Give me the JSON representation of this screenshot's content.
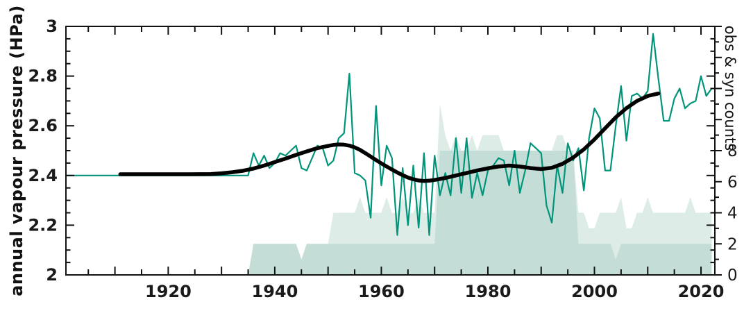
{
  "figure": {
    "background": "#ffffff",
    "axis_color": "#111111",
    "accent_teal": "#00947a",
    "smooth_black": "#000000",
    "area_fill": "rgba(106,168,152,0.22)"
  },
  "chart_data": {
    "type": "line",
    "title": "",
    "xlabel": "",
    "ylabel": "annual vapour pressure (HPa)",
    "y2label": "obs & syn counts",
    "grid": false,
    "legend": "none",
    "xlim": [
      1900.8,
      2022.6
    ],
    "ylim_left": [
      2,
      3
    ],
    "ylim_right": [
      0,
      16
    ],
    "x_labeled_ticks": [
      1920,
      1940,
      1960,
      1980,
      2000,
      2020
    ],
    "x_tick_labels": [
      "1920",
      "1940",
      "1960",
      "1980",
      "2000",
      "2020"
    ],
    "x_major_step": 10,
    "x_minor_step": 5,
    "y_left_tick_values": [
      2,
      2.2,
      2.4,
      2.6,
      2.8,
      3
    ],
    "y_left_tick_labels": [
      "2",
      "2.2",
      "2.4",
      "2.6",
      "2.8",
      "3"
    ],
    "y_left_minor_step": 0.05,
    "y_right_tick_values": [
      0,
      2,
      4,
      6,
      8
    ],
    "y_right_tick_labels": [
      "0",
      "2",
      "4",
      "6",
      "8"
    ],
    "y_right_minor_step": 1,
    "series": [
      {
        "name": "annual vapour pressure",
        "kind": "line",
        "axis": "left",
        "color": "#00947a",
        "width": 2.2,
        "x_start": 1901,
        "values": [
          2.4,
          2.4,
          2.4,
          2.4,
          2.4,
          2.4,
          2.4,
          2.4,
          2.4,
          2.4,
          2.4,
          2.4,
          2.4,
          2.4,
          2.4,
          2.4,
          2.4,
          2.4,
          2.4,
          2.4,
          2.4,
          2.4,
          2.4,
          2.4,
          2.4,
          2.4,
          2.4,
          2.4,
          2.4,
          2.4,
          2.4,
          2.4,
          2.4,
          2.4,
          2.4,
          2.49,
          2.44,
          2.48,
          2.43,
          2.45,
          2.49,
          2.48,
          2.5,
          2.52,
          2.43,
          2.42,
          2.47,
          2.52,
          2.51,
          2.44,
          2.46,
          2.55,
          2.57,
          2.81,
          2.41,
          2.4,
          2.38,
          2.23,
          2.68,
          2.36,
          2.52,
          2.47,
          2.16,
          2.43,
          2.2,
          2.44,
          2.19,
          2.49,
          2.16,
          2.48,
          2.32,
          2.41,
          2.32,
          2.55,
          2.33,
          2.55,
          2.31,
          2.41,
          2.32,
          2.42,
          2.44,
          2.47,
          2.46,
          2.36,
          2.5,
          2.33,
          2.42,
          2.53,
          2.51,
          2.49,
          2.28,
          2.21,
          2.44,
          2.33,
          2.53,
          2.46,
          2.51,
          2.34,
          2.55,
          2.67,
          2.63,
          2.42,
          2.42,
          2.6,
          2.76,
          2.54,
          2.72,
          2.73,
          2.71,
          2.74,
          2.97,
          2.79,
          2.62,
          2.62,
          2.71,
          2.75,
          2.67,
          2.69,
          2.7,
          2.8,
          2.72,
          2.75
        ]
      },
      {
        "name": "smoothed annual vapour pressure",
        "kind": "line",
        "axis": "left",
        "color": "#000000",
        "width": 5.5,
        "points": [
          [
            1911,
            2.405
          ],
          [
            1916,
            2.405
          ],
          [
            1920,
            2.405
          ],
          [
            1924,
            2.405
          ],
          [
            1928,
            2.406
          ],
          [
            1930,
            2.409
          ],
          [
            1932,
            2.413
          ],
          [
            1934,
            2.419
          ],
          [
            1936,
            2.428
          ],
          [
            1938,
            2.44
          ],
          [
            1940,
            2.454
          ],
          [
            1942,
            2.468
          ],
          [
            1944,
            2.483
          ],
          [
            1946,
            2.497
          ],
          [
            1948,
            2.51
          ],
          [
            1950,
            2.519
          ],
          [
            1951,
            2.523
          ],
          [
            1952,
            2.525
          ],
          [
            1953,
            2.524
          ],
          [
            1954,
            2.52
          ],
          [
            1955,
            2.513
          ],
          [
            1956,
            2.503
          ],
          [
            1957,
            2.49
          ],
          [
            1958,
            2.476
          ],
          [
            1959,
            2.462
          ],
          [
            1960,
            2.449
          ],
          [
            1961,
            2.436
          ],
          [
            1962,
            2.424
          ],
          [
            1963,
            2.412
          ],
          [
            1964,
            2.401
          ],
          [
            1965,
            2.392
          ],
          [
            1966,
            2.385
          ],
          [
            1967,
            2.38
          ],
          [
            1968,
            2.378
          ],
          [
            1969,
            2.379
          ],
          [
            1970,
            2.382
          ],
          [
            1972,
            2.39
          ],
          [
            1974,
            2.4
          ],
          [
            1976,
            2.41
          ],
          [
            1978,
            2.42
          ],
          [
            1980,
            2.429
          ],
          [
            1982,
            2.436
          ],
          [
            1984,
            2.44
          ],
          [
            1986,
            2.436
          ],
          [
            1988,
            2.43
          ],
          [
            1990,
            2.426
          ],
          [
            1992,
            2.431
          ],
          [
            1994,
            2.447
          ],
          [
            1996,
            2.472
          ],
          [
            1998,
            2.505
          ],
          [
            2000,
            2.545
          ],
          [
            2002,
            2.59
          ],
          [
            2004,
            2.634
          ],
          [
            2006,
            2.671
          ],
          [
            2008,
            2.7
          ],
          [
            2010,
            2.72
          ],
          [
            2012,
            2.73
          ]
        ]
      },
      {
        "name": "obs counts",
        "kind": "area",
        "axis": "right",
        "color": "rgba(106,168,152,0.22)",
        "x_start": 1935,
        "values": [
          0,
          2,
          2,
          2,
          2,
          2,
          2,
          2,
          2,
          2,
          1,
          2,
          2,
          2,
          2,
          2,
          4,
          4,
          4,
          4,
          4,
          5,
          4,
          4,
          4,
          4,
          5,
          4,
          4,
          5,
          4,
          4,
          5,
          4,
          4,
          4,
          11,
          9,
          8,
          9,
          8,
          8,
          9,
          8,
          9,
          9,
          9,
          9,
          8,
          8,
          8,
          8,
          8,
          8,
          8,
          8,
          8,
          8,
          9,
          9,
          8,
          8,
          4,
          4,
          3,
          3,
          4,
          4,
          4,
          4,
          5,
          3,
          3,
          4,
          4,
          5,
          4,
          4,
          4,
          4,
          4,
          4,
          4,
          5,
          4,
          4,
          4,
          4
        ]
      },
      {
        "name": "syn counts",
        "kind": "area",
        "axis": "right",
        "color": "rgba(106,168,152,0.22)",
        "x_start": 1935,
        "values": [
          0,
          2,
          2,
          2,
          2,
          2,
          2,
          2,
          2,
          2,
          1,
          2,
          2,
          2,
          2,
          2,
          2,
          2,
          2,
          2,
          2,
          2,
          2,
          2,
          2,
          2,
          2,
          2,
          2,
          2,
          2,
          2,
          2,
          2,
          2,
          2,
          8,
          8,
          8,
          8,
          8,
          8,
          8,
          8,
          8,
          8,
          8,
          8,
          8,
          8,
          8,
          8,
          8,
          8,
          8,
          8,
          8,
          8,
          8,
          8,
          8,
          8,
          2,
          2,
          2,
          2,
          2,
          2,
          2,
          1,
          2,
          2,
          2,
          2,
          2,
          2,
          2,
          2,
          2,
          2,
          2,
          2,
          2,
          2,
          2,
          2,
          2,
          2
        ]
      }
    ]
  }
}
